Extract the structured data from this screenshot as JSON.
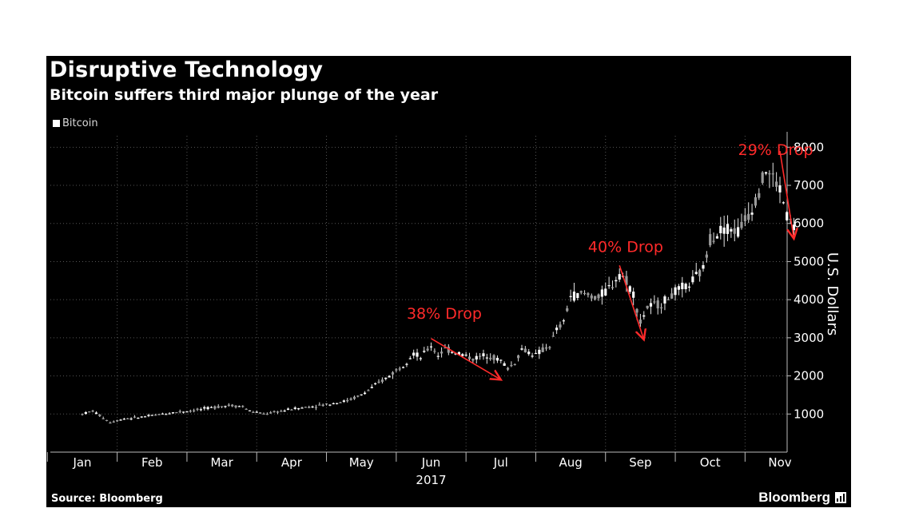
{
  "colors": {
    "background": "#000000",
    "candle": "#e6e6e6",
    "annotation": "#ff2a2a",
    "grid": "#555555",
    "text": "#ffffff"
  },
  "title": "Disruptive Technology",
  "subtitle": "Bitcoin suffers third major plunge of the year",
  "source": "Source: Bloomberg",
  "brand": "Bloomberg",
  "legend": [
    {
      "label": "Bitcoin",
      "color": "#ffffff"
    }
  ],
  "chart_data": {
    "type": "candlestick",
    "x_ticks": [
      "Jan",
      "Feb",
      "Mar",
      "Apr",
      "May",
      "Jun",
      "Jul",
      "Aug",
      "Sep",
      "Oct",
      "Nov"
    ],
    "x_year_label": "2017",
    "ylabel": "U.S. Dollars",
    "y_ticks": [
      "1000",
      "2000",
      "3000",
      "4000",
      "5000",
      "6000",
      "7000",
      "8000"
    ],
    "ylim": [
      0,
      8300
    ],
    "xlim_month": [
      0,
      10.5
    ],
    "grid": true,
    "y_axis_side": "right",
    "series": [
      {
        "name": "Bitcoin",
        "points": [
          [
            0.0,
            1000
          ],
          [
            0.15,
            1080
          ],
          [
            0.3,
            900
          ],
          [
            0.4,
            780
          ],
          [
            0.6,
            880
          ],
          [
            0.8,
            910
          ],
          [
            1.0,
            960
          ],
          [
            1.3,
            1040
          ],
          [
            1.6,
            1100
          ],
          [
            1.9,
            1180
          ],
          [
            2.1,
            1230
          ],
          [
            2.3,
            1200
          ],
          [
            2.4,
            1080
          ],
          [
            2.6,
            1000
          ],
          [
            2.8,
            1060
          ],
          [
            3.0,
            1130
          ],
          [
            3.3,
            1200
          ],
          [
            3.5,
            1250
          ],
          [
            3.8,
            1350
          ],
          [
            4.0,
            1500
          ],
          [
            4.2,
            1750
          ],
          [
            4.4,
            2000
          ],
          [
            4.6,
            2300
          ],
          [
            4.75,
            2600
          ],
          [
            4.85,
            2480
          ],
          [
            5.0,
            2800
          ],
          [
            5.1,
            2550
          ],
          [
            5.2,
            2700
          ],
          [
            5.4,
            2600
          ],
          [
            5.6,
            2450
          ],
          [
            5.8,
            2560
          ],
          [
            6.0,
            2400
          ],
          [
            6.1,
            2200
          ],
          [
            6.2,
            2350
          ],
          [
            6.3,
            2700
          ],
          [
            6.5,
            2550
          ],
          [
            6.7,
            2800
          ],
          [
            6.8,
            3200
          ],
          [
            6.9,
            3400
          ],
          [
            7.0,
            4100
          ],
          [
            7.2,
            4150
          ],
          [
            7.4,
            4050
          ],
          [
            7.6,
            4400
          ],
          [
            7.7,
            4700
          ],
          [
            7.8,
            4500
          ],
          [
            7.9,
            4150
          ],
          [
            8.0,
            3400
          ],
          [
            8.1,
            3800
          ],
          [
            8.3,
            3900
          ],
          [
            8.5,
            4200
          ],
          [
            8.7,
            4400
          ],
          [
            8.9,
            4800
          ],
          [
            9.0,
            5600
          ],
          [
            9.2,
            5900
          ],
          [
            9.4,
            5800
          ],
          [
            9.6,
            6400
          ],
          [
            9.7,
            6900
          ],
          [
            9.8,
            7400
          ],
          [
            9.9,
            7200
          ],
          [
            10.0,
            6900
          ],
          [
            10.1,
            6200
          ],
          [
            10.2,
            5900
          ]
        ]
      }
    ],
    "annotations": [
      {
        "text": "38% Drop",
        "from": [
          5.0,
          2980
        ],
        "to": [
          6.0,
          1900
        ],
        "label_at": [
          4.65,
          3500
        ]
      },
      {
        "text": "40% Drop",
        "from": [
          7.7,
          4900
        ],
        "to": [
          8.05,
          2950
        ],
        "label_at": [
          7.25,
          5250
        ]
      },
      {
        "text": "29% Drop",
        "from": [
          10.0,
          7900
        ],
        "to": [
          10.2,
          5600
        ],
        "label_at": [
          9.4,
          7800
        ]
      }
    ]
  }
}
